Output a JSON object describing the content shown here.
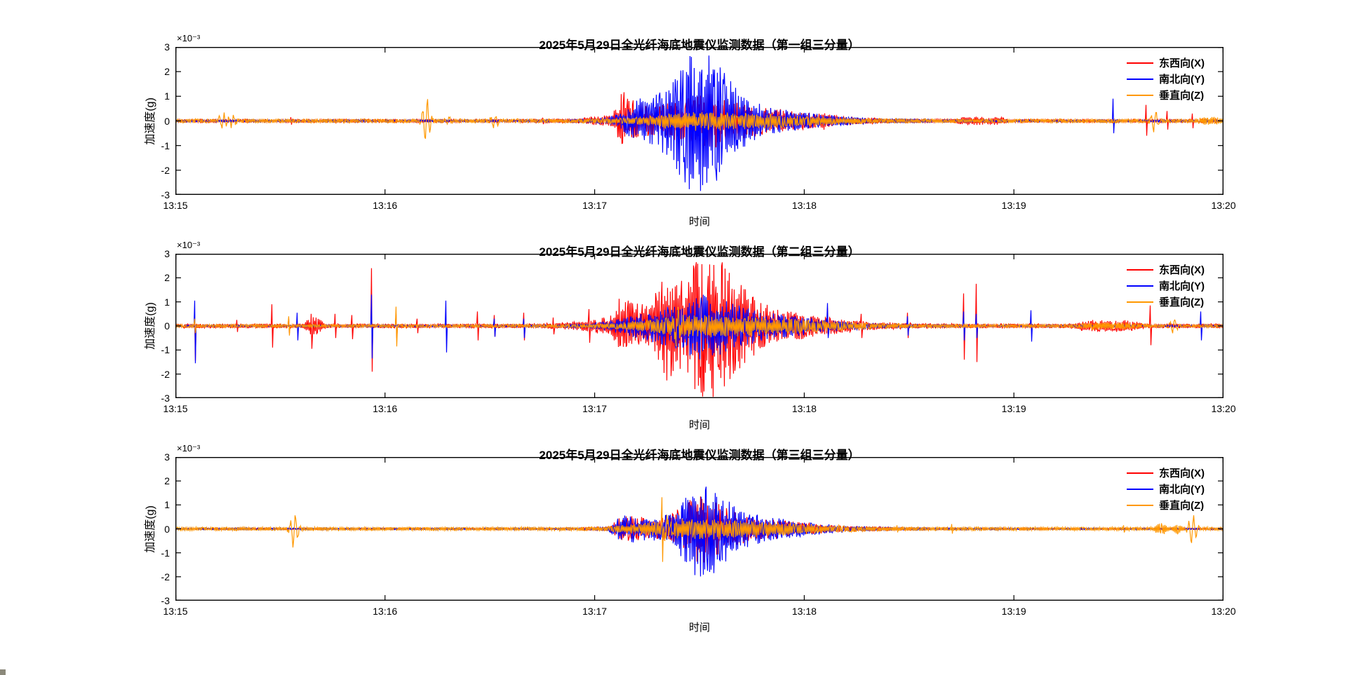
{
  "figure": {
    "background_color": "#ffffff",
    "axis_color": "#000000",
    "text_color": "#000000"
  },
  "chart_data": [
    {
      "type": "line",
      "title": "2025年5月29日全光纤海底地震仪监测数据（第一组三分量）",
      "xlabel": "时间",
      "ylabel": "加速度(g)",
      "y_exponent": "×10⁻³",
      "x_tick_labels": [
        "13:15",
        "13:16",
        "13:17",
        "13:18",
        "13:19",
        "13:20"
      ],
      "y_tick_labels": [
        "3",
        "2",
        "1",
        "0",
        "-1",
        "-2",
        "-3"
      ],
      "ylim": [
        -0.003,
        0.003
      ],
      "x_range_minutes": 5,
      "grid": false,
      "legend_position": "top-right",
      "series": [
        {
          "name": "东西向(X)",
          "color": "#ff0000",
          "noise": 0.055,
          "events": [
            {
              "type": "spike",
              "t": 0.55,
              "up": 0.15,
              "dn": 0.15
            },
            {
              "type": "spike",
              "t": 1.75,
              "up": 0.13,
              "dn": 0.13
            },
            {
              "type": "burst",
              "t": 2.13,
              "up": 0.8,
              "dn": 0.7,
              "rise": 0.02,
              "decay": 0.05
            },
            {
              "type": "burst",
              "t": 2.42,
              "up": 0.8,
              "dn": 0.75,
              "rise": 0.22,
              "decay": 0.42
            },
            {
              "type": "burst",
              "t": 2.54,
              "up": 0.4,
              "dn": 0.4,
              "rise": 0.06,
              "decay": 0.1
            },
            {
              "type": "fuzz",
              "t": 3.1,
              "amp": 0.1,
              "w": 0.03
            },
            {
              "type": "fuzz",
              "t": 3.8,
              "amp": 0.13,
              "w": 0.08
            },
            {
              "type": "fuzz",
              "t": 3.92,
              "amp": 0.12,
              "w": 0.04
            },
            {
              "type": "spike",
              "t": 4.63,
              "up": 0.65,
              "dn": 0.6
            },
            {
              "type": "spike",
              "t": 4.73,
              "up": 0.4,
              "dn": 0.35
            },
            {
              "type": "spike",
              "t": 4.85,
              "up": 0.3,
              "dn": 0.3
            }
          ]
        },
        {
          "name": "南北向(Y)",
          "color": "#0000ff",
          "noise": 0.04,
          "events": [
            {
              "type": "burst",
              "t": 2.2,
              "up": 0.5,
              "dn": 0.5,
              "rise": 0.05,
              "decay": 0.2
            },
            {
              "type": "burst",
              "t": 2.48,
              "up": 0.75,
              "dn": 0.7,
              "rise": 0.22,
              "decay": 0.4
            },
            {
              "type": "burst",
              "t": 2.5,
              "up": 1.9,
              "dn": 2.25,
              "rise": 0.09,
              "decay": 0.12
            },
            {
              "type": "spike",
              "t": 4.47,
              "up": 0.9,
              "dn": 0.5
            }
          ]
        },
        {
          "name": "垂直向(Z)",
          "color": "#ff9800",
          "noise": 0.085,
          "events": [
            {
              "type": "wavelet",
              "t": 0.225,
              "up": 0.28,
              "dn": 0.28
            },
            {
              "type": "wavelet",
              "t": 0.27,
              "up": 0.22,
              "dn": 0.22
            },
            {
              "type": "wavelet",
              "t": 1.195,
              "up": 0.95,
              "dn": 0.85
            },
            {
              "type": "wavelet",
              "t": 1.3,
              "up": 0.18,
              "dn": 0.18
            },
            {
              "type": "wavelet",
              "t": 1.52,
              "up": 0.25,
              "dn": 0.25
            },
            {
              "type": "burst",
              "t": 2.5,
              "up": 0.3,
              "dn": 0.33,
              "rise": 0.2,
              "decay": 0.4
            },
            {
              "type": "wavelet",
              "t": 4.67,
              "up": 0.45,
              "dn": 0.45
            },
            {
              "type": "fuzz",
              "t": 4.93,
              "amp": 0.1,
              "w": 0.05
            }
          ]
        }
      ]
    },
    {
      "type": "line",
      "title": "2025年5月29日全光纤海底地震仪监测数据（第二组三分量）",
      "xlabel": "时间",
      "ylabel": "加速度(g)",
      "y_exponent": "×10⁻³",
      "x_tick_labels": [
        "13:15",
        "13:16",
        "13:17",
        "13:18",
        "13:19",
        "13:20"
      ],
      "y_tick_labels": [
        "3",
        "2",
        "1",
        "0",
        "-1",
        "-2",
        "-3"
      ],
      "ylim": [
        -0.003,
        0.003
      ],
      "x_range_minutes": 5,
      "grid": false,
      "legend_position": "top-right",
      "series": [
        {
          "name": "东西向(X)",
          "color": "#ff0000",
          "noise": 0.09,
          "events": [
            {
              "type": "spike",
              "t": 0.09,
              "up": 0.3,
              "dn": 1.45
            },
            {
              "type": "spike",
              "t": 0.29,
              "up": 0.25,
              "dn": 0.25
            },
            {
              "type": "spike",
              "t": 0.46,
              "up": 0.9,
              "dn": 0.9
            },
            {
              "type": "spike",
              "t": 0.54,
              "up": 0.3,
              "dn": 0.3
            },
            {
              "type": "spike",
              "t": 0.645,
              "up": 0.5,
              "dn": 0.95
            },
            {
              "type": "fuzz",
              "t": 0.66,
              "amp": 0.3,
              "w": 0.04
            },
            {
              "type": "spike",
              "t": 0.76,
              "up": 0.5,
              "dn": 0.5
            },
            {
              "type": "spike",
              "t": 0.84,
              "up": 0.45,
              "dn": 0.55
            },
            {
              "type": "spike",
              "t": 0.935,
              "up": 2.4,
              "dn": 1.9
            },
            {
              "type": "spike",
              "t": 1.05,
              "up": 0.5,
              "dn": 0.5
            },
            {
              "type": "spike",
              "t": 1.15,
              "up": 0.3,
              "dn": 0.3
            },
            {
              "type": "spike",
              "t": 1.44,
              "up": 0.6,
              "dn": 0.6
            },
            {
              "type": "spike",
              "t": 1.52,
              "up": 0.45,
              "dn": 0.45
            },
            {
              "type": "spike",
              "t": 1.66,
              "up": 0.55,
              "dn": 0.6
            },
            {
              "type": "spike",
              "t": 1.8,
              "up": 0.35,
              "dn": 0.35
            },
            {
              "type": "spike",
              "t": 1.97,
              "up": 0.7,
              "dn": 0.7
            },
            {
              "type": "burst",
              "t": 2.12,
              "up": 0.7,
              "dn": 0.6,
              "rise": 0.02,
              "decay": 0.06
            },
            {
              "type": "burst",
              "t": 2.33,
              "up": 1.3,
              "dn": 1.2,
              "rise": 0.03,
              "decay": 0.05
            },
            {
              "type": "burst",
              "t": 2.45,
              "up": 1.1,
              "dn": 1.15,
              "rise": 0.25,
              "decay": 0.4
            },
            {
              "type": "burst",
              "t": 2.53,
              "up": 1.95,
              "dn": 2.0,
              "rise": 0.07,
              "decay": 0.12
            },
            {
              "type": "spike",
              "t": 2.96,
              "up": 0.55,
              "dn": 0.55
            },
            {
              "type": "spike",
              "t": 3.11,
              "up": 0.75,
              "dn": 0.4
            },
            {
              "type": "spike",
              "t": 3.27,
              "up": 0.5,
              "dn": 0.5
            },
            {
              "type": "spike",
              "t": 3.49,
              "up": 0.55,
              "dn": 0.5
            },
            {
              "type": "spike",
              "t": 3.76,
              "up": 1.35,
              "dn": 1.4
            },
            {
              "type": "spike",
              "t": 3.82,
              "up": 1.75,
              "dn": 1.5
            },
            {
              "type": "fuzz",
              "t": 4.45,
              "amp": 0.17,
              "w": 0.15
            },
            {
              "type": "spike",
              "t": 4.65,
              "up": 0.85,
              "dn": 0.8
            }
          ]
        },
        {
          "name": "南北向(Y)",
          "color": "#0000ff",
          "noise": 0.035,
          "events": [
            {
              "type": "spike",
              "t": 0.09,
              "up": 1.05,
              "dn": 1.55
            },
            {
              "type": "spike",
              "t": 0.58,
              "up": 0.55,
              "dn": 0.6
            },
            {
              "type": "spike",
              "t": 0.935,
              "up": 1.3,
              "dn": 1.35
            },
            {
              "type": "spike",
              "t": 1.29,
              "up": 1.05,
              "dn": 1.1
            },
            {
              "type": "spike",
              "t": 1.52,
              "up": 0.3,
              "dn": 0.45
            },
            {
              "type": "spike",
              "t": 1.66,
              "up": 0.3,
              "dn": 0.5
            },
            {
              "type": "burst",
              "t": 2.45,
              "up": 0.85,
              "dn": 0.9,
              "rise": 0.22,
              "decay": 0.4
            },
            {
              "type": "burst",
              "t": 2.52,
              "up": 0.45,
              "dn": 0.5,
              "rise": 0.07,
              "decay": 0.1
            },
            {
              "type": "spike",
              "t": 3.11,
              "up": 0.95,
              "dn": 0.5
            },
            {
              "type": "spike",
              "t": 3.49,
              "up": 0.4,
              "dn": 0.4
            },
            {
              "type": "spike",
              "t": 3.76,
              "up": 0.6,
              "dn": 0.6
            },
            {
              "type": "spike",
              "t": 3.82,
              "up": 0.5,
              "dn": 0.5
            },
            {
              "type": "spike",
              "t": 4.08,
              "up": 0.65,
              "dn": 0.65
            },
            {
              "type": "spike",
              "t": 4.89,
              "up": 0.6,
              "dn": 0.6
            }
          ]
        },
        {
          "name": "垂直向(Z)",
          "color": "#ff9800",
          "noise": 0.06,
          "events": [
            {
              "type": "spike",
              "t": 0.09,
              "up": 0.3,
              "dn": 0.3
            },
            {
              "type": "spike",
              "t": 0.54,
              "up": 0.4,
              "dn": 0.4
            },
            {
              "type": "spike",
              "t": 1.05,
              "up": 0.8,
              "dn": 0.85
            },
            {
              "type": "wavelet",
              "t": 2.39,
              "up": 0.5,
              "dn": 0.65
            },
            {
              "type": "burst",
              "t": 2.5,
              "up": 0.42,
              "dn": 0.45,
              "rise": 0.22,
              "decay": 0.45
            },
            {
              "type": "fuzz",
              "t": 4.45,
              "amp": 0.12,
              "w": 0.15
            },
            {
              "type": "wavelet",
              "t": 4.76,
              "up": 0.3,
              "dn": 0.3
            }
          ]
        }
      ]
    },
    {
      "type": "line",
      "title": "2025年5月29日全光纤海底地震仪监测数据（第三组三分量）",
      "xlabel": "时间",
      "ylabel": "加速度(g)",
      "y_exponent": "×10⁻³",
      "x_tick_labels": [
        "13:15",
        "13:16",
        "13:17",
        "13:18",
        "13:19",
        "13:20"
      ],
      "y_tick_labels": [
        "3",
        "2",
        "1",
        "0",
        "-1",
        "-2",
        "-3"
      ],
      "ylim": [
        -0.003,
        0.003
      ],
      "x_range_minutes": 5,
      "grid": false,
      "legend_position": "top-right",
      "series": [
        {
          "name": "东西向(X)",
          "color": "#ff0000",
          "noise": 0.03,
          "events": [
            {
              "type": "burst",
              "t": 2.13,
              "up": 0.4,
              "dn": 0.35,
              "rise": 0.03,
              "decay": 0.08
            },
            {
              "type": "burst",
              "t": 2.48,
              "up": 0.6,
              "dn": 0.6,
              "rise": 0.2,
              "decay": 0.38
            },
            {
              "type": "burst",
              "t": 2.5,
              "up": 0.75,
              "dn": 0.8,
              "rise": 0.07,
              "decay": 0.1
            }
          ]
        },
        {
          "name": "南北向(Y)",
          "color": "#0000ff",
          "noise": 0.035,
          "events": [
            {
              "type": "burst",
              "t": 2.13,
              "up": 0.45,
              "dn": 0.45,
              "rise": 0.03,
              "decay": 0.08
            },
            {
              "type": "burst",
              "t": 2.5,
              "up": 0.75,
              "dn": 0.8,
              "rise": 0.18,
              "decay": 0.35
            },
            {
              "type": "burst",
              "t": 2.51,
              "up": 1.15,
              "dn": 1.25,
              "rise": 0.07,
              "decay": 0.1
            }
          ]
        },
        {
          "name": "垂直向(Z)",
          "color": "#ff9800",
          "noise": 0.075,
          "events": [
            {
              "type": "wavelet",
              "t": 0.565,
              "up": 0.6,
              "dn": 0.8
            },
            {
              "type": "spike",
              "t": 2.32,
              "up": 1.32,
              "dn": 1.38
            },
            {
              "type": "wavelet",
              "t": 2.34,
              "up": 0.4,
              "dn": 0.4
            },
            {
              "type": "burst",
              "t": 2.45,
              "up": 0.35,
              "dn": 0.38,
              "rise": 0.2,
              "decay": 0.42
            },
            {
              "type": "spike",
              "t": 3.44,
              "up": 0.15,
              "dn": 0.15
            },
            {
              "type": "spike",
              "t": 3.7,
              "up": 0.2,
              "dn": 0.2
            },
            {
              "type": "spike",
              "t": 4.52,
              "up": 0.15,
              "dn": 0.15
            },
            {
              "type": "fuzz",
              "t": 4.7,
              "amp": 0.18,
              "w": 0.03
            },
            {
              "type": "fuzz",
              "t": 4.78,
              "amp": 0.16,
              "w": 0.02
            },
            {
              "type": "wavelet",
              "t": 4.85,
              "up": 0.55,
              "dn": 0.65
            }
          ]
        }
      ]
    }
  ]
}
